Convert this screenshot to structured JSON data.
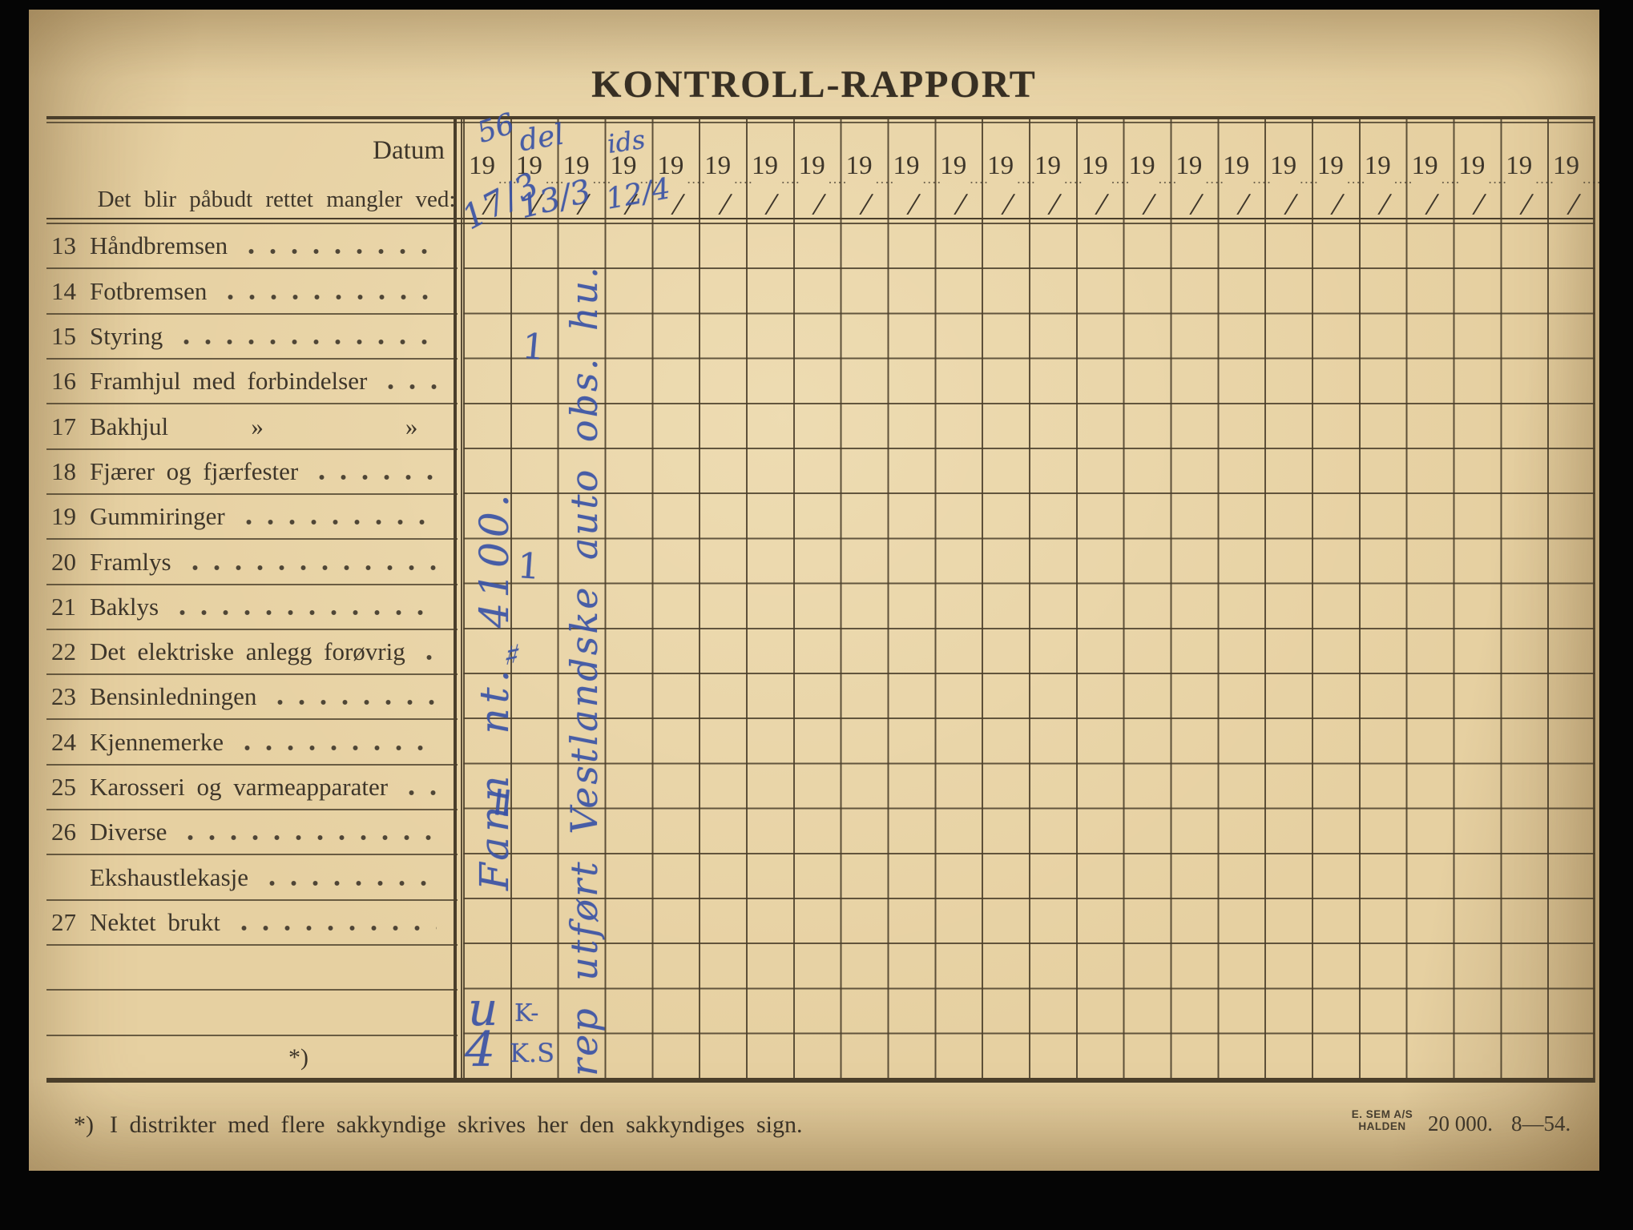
{
  "title": "KONTROLL-RAPPORT",
  "header": {
    "datum_label": "Datum",
    "col_header_label": "Det blir påbudt rettet mangler ved:",
    "year_prefix": "19",
    "year_dots": "....",
    "day_slash": "/",
    "column_count": 24
  },
  "rows": [
    {
      "num": "13",
      "label": "Håndbremsen"
    },
    {
      "num": "14",
      "label": "Fotbremsen"
    },
    {
      "num": "15",
      "label": "Styring"
    },
    {
      "num": "16",
      "label": "Framhjul med forbindelser"
    },
    {
      "num": "17",
      "label": "Bakhjul       »            »"
    },
    {
      "num": "18",
      "label": "Fjærer og fjærfester"
    },
    {
      "num": "19",
      "label": "Gummiringer"
    },
    {
      "num": "20",
      "label": "Framlys"
    },
    {
      "num": "21",
      "label": "Baklys"
    },
    {
      "num": "22",
      "label": "Det elektriske anlegg forøvrig"
    },
    {
      "num": "23",
      "label": "Bensinledningen"
    },
    {
      "num": "24",
      "label": "Kjennemerke"
    },
    {
      "num": "25",
      "label": "Karosseri og varmeapparater"
    },
    {
      "num": "26",
      "label": "Diverse"
    },
    {
      "num": "",
      "label": "Ekshaustlekasje"
    },
    {
      "num": "27",
      "label": "Nektet brukt"
    },
    {
      "num": "",
      "label": ""
    },
    {
      "num": "",
      "label": ""
    },
    {
      "num": "",
      "label": "*)",
      "type": "asterisk"
    }
  ],
  "footnote": {
    "marker": "*)",
    "text": "I distrikter med flere sakkyndige skrives her den sakkyndiges sign."
  },
  "imprint": {
    "publisher_line1": "E. SEM A/S",
    "publisher_line2": "HALDEN",
    "quantity": "20 000.",
    "date_code": "8—54."
  },
  "handwriting": {
    "year_scribble_1": "56",
    "date_1": "17/3",
    "year_scribble_2": "del",
    "date_2": "13/3",
    "year_scribble_3": "ids",
    "date_3": "12/4",
    "col1_vertical_note": "Fann nt. 4100.",
    "col3_vertical_note": "rep utført Vestlandske auto obs. hu.",
    "tick_styring": "1",
    "tick_framlys": "1",
    "mark_elektrisk": "♯",
    "mark_karosseri": "=",
    "initial_row18_col1": "u",
    "initial_row18_col2": "K-",
    "initial_row19_col1": "4",
    "initial_row19_col2": "K.S"
  },
  "colors": {
    "paper": "#e6d0a1",
    "ink": "#3e362a",
    "line": "#4a3e2a",
    "blue": "#3a53a6"
  }
}
